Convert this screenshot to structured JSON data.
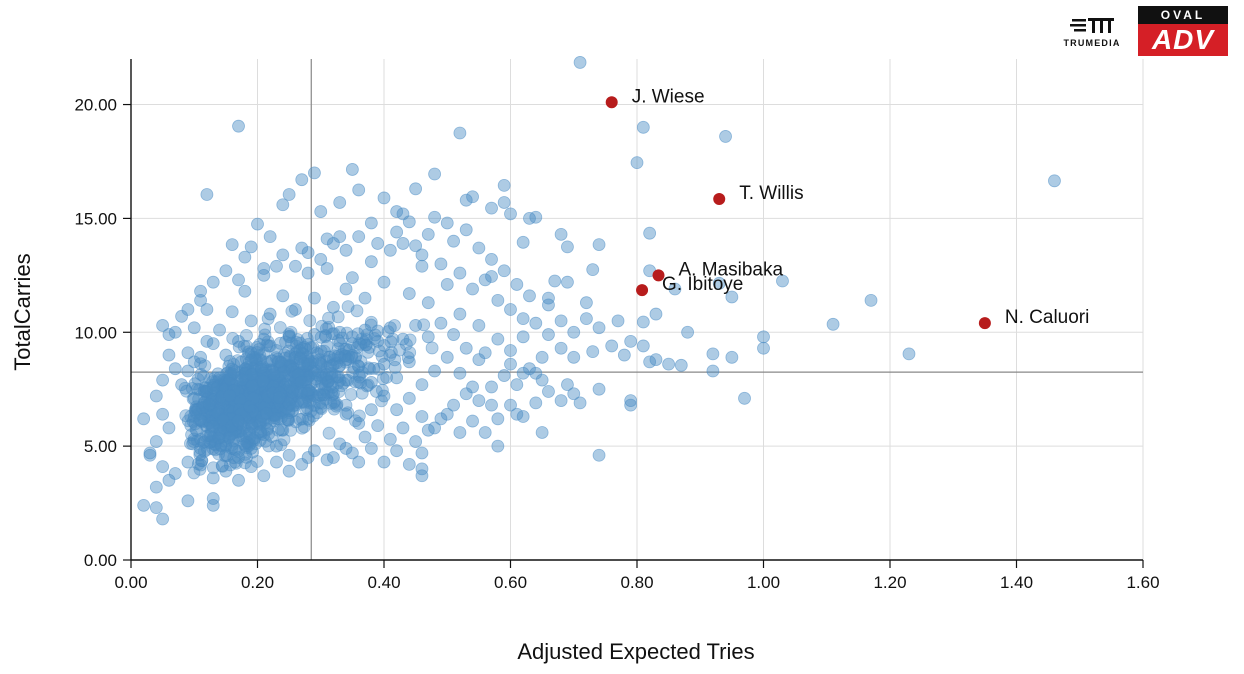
{
  "chart_data": {
    "type": "scatter",
    "title": "",
    "xlabel": "Adjusted Expected Tries",
    "ylabel": "TotalCarries",
    "xlim": [
      0,
      1.6
    ],
    "ylim": [
      0,
      22
    ],
    "grid": true,
    "xticks": [
      "0.00",
      "0.20",
      "0.40",
      "0.60",
      "0.80",
      "1.00",
      "1.20",
      "1.40",
      "1.60"
    ],
    "yticks": [
      "0.00",
      "5.00",
      "10.00",
      "15.00",
      "20.00"
    ],
    "xtick_values": [
      0,
      0.2,
      0.4,
      0.6,
      0.8,
      1.0,
      1.2,
      1.4,
      1.6
    ],
    "ytick_values": [
      0,
      5,
      10,
      15,
      20
    ],
    "reference_lines": {
      "x": 0.285,
      "y": 8.25
    },
    "colors": {
      "points": "#4a8cc4",
      "highlight": "#b71c1c",
      "grid": "#dddddd",
      "reference": "#888888"
    },
    "highlighted": [
      {
        "label": "J. Wiese",
        "x": 0.76,
        "y": 20.1
      },
      {
        "label": "T. Willis",
        "x": 0.93,
        "y": 15.85
      },
      {
        "label": "A. Masibaka",
        "x": 0.834,
        "y": 12.5
      },
      {
        "label": "G. Ibitoye",
        "x": 0.808,
        "y": 11.85
      },
      {
        "label": "N. Caluori",
        "x": 1.35,
        "y": 10.4
      }
    ],
    "points": [
      [
        0.71,
        21.85
      ],
      [
        0.17,
        19.05
      ],
      [
        0.81,
        19.0
      ],
      [
        0.94,
        18.6
      ],
      [
        0.52,
        18.75
      ],
      [
        0.8,
        17.45
      ],
      [
        1.46,
        16.65
      ],
      [
        0.48,
        16.95
      ],
      [
        0.27,
        16.7
      ],
      [
        0.29,
        17.0
      ],
      [
        0.35,
        17.15
      ],
      [
        0.36,
        16.25
      ],
      [
        0.12,
        16.05
      ],
      [
        0.25,
        16.05
      ],
      [
        0.53,
        15.8
      ],
      [
        0.54,
        15.95
      ],
      [
        0.59,
        16.45
      ],
      [
        0.59,
        15.7
      ],
      [
        0.6,
        15.2
      ],
      [
        0.63,
        15.0
      ],
      [
        0.64,
        15.05
      ],
      [
        0.57,
        15.45
      ],
      [
        0.42,
        15.3
      ],
      [
        0.44,
        14.85
      ],
      [
        0.48,
        15.05
      ],
      [
        0.38,
        14.8
      ],
      [
        0.33,
        14.2
      ],
      [
        0.2,
        14.75
      ],
      [
        0.16,
        13.85
      ],
      [
        0.19,
        13.75
      ],
      [
        0.27,
        13.7
      ],
      [
        0.62,
        13.95
      ],
      [
        0.68,
        14.3
      ],
      [
        0.74,
        13.85
      ],
      [
        0.82,
        14.35
      ],
      [
        0.69,
        13.75
      ],
      [
        0.73,
        12.75
      ],
      [
        0.67,
        12.25
      ],
      [
        0.69,
        12.2
      ],
      [
        0.82,
        12.7
      ],
      [
        0.86,
        11.9
      ],
      [
        0.93,
        12.15
      ],
      [
        0.95,
        11.55
      ],
      [
        1.03,
        12.25
      ],
      [
        1.17,
        11.4
      ],
      [
        0.57,
        12.45
      ],
      [
        0.66,
        11.5
      ],
      [
        0.72,
        11.3
      ],
      [
        0.77,
        10.5
      ],
      [
        0.81,
        10.45
      ],
      [
        0.83,
        10.8
      ],
      [
        0.88,
        10.0
      ],
      [
        1.0,
        9.8
      ],
      [
        1.11,
        10.35
      ],
      [
        1.23,
        9.05
      ],
      [
        0.92,
        9.05
      ],
      [
        0.95,
        8.9
      ],
      [
        1.0,
        9.3
      ],
      [
        0.82,
        8.7
      ],
      [
        0.83,
        8.8
      ],
      [
        0.85,
        8.6
      ],
      [
        0.87,
        8.55
      ],
      [
        0.92,
        8.3
      ],
      [
        0.79,
        9.6
      ],
      [
        0.81,
        9.4
      ],
      [
        0.73,
        9.15
      ],
      [
        0.7,
        8.9
      ],
      [
        0.68,
        9.3
      ],
      [
        0.65,
        8.9
      ],
      [
        0.64,
        8.2
      ],
      [
        0.62,
        8.2
      ],
      [
        0.6,
        8.6
      ],
      [
        0.69,
        7.7
      ],
      [
        0.7,
        7.3
      ],
      [
        0.71,
        6.9
      ],
      [
        0.74,
        7.5
      ],
      [
        0.79,
        7.0
      ],
      [
        0.79,
        6.8
      ],
      [
        0.97,
        7.1
      ],
      [
        0.74,
        4.6
      ],
      [
        0.65,
        5.6
      ],
      [
        0.58,
        5.0
      ],
      [
        0.61,
        6.4
      ],
      [
        0.57,
        6.8
      ],
      [
        0.46,
        4.0
      ],
      [
        0.46,
        3.7
      ],
      [
        0.02,
        2.4
      ],
      [
        0.04,
        2.3
      ],
      [
        0.05,
        1.8
      ],
      [
        0.13,
        2.7
      ],
      [
        0.13,
        2.4
      ],
      [
        0.09,
        2.6
      ],
      [
        0.04,
        3.2
      ],
      [
        0.06,
        3.5
      ],
      [
        0.03,
        4.6
      ],
      [
        0.02,
        6.2
      ],
      [
        0.05,
        10.3
      ],
      [
        0.06,
        9.9
      ],
      [
        0.1,
        10.2
      ],
      [
        0.06,
        9.0
      ],
      [
        0.1,
        8.7
      ],
      [
        0.11,
        11.4
      ],
      [
        0.12,
        11.0
      ],
      [
        0.17,
        12.3
      ],
      [
        0.18,
        11.8
      ],
      [
        0.21,
        12.5
      ],
      [
        0.23,
        12.9
      ],
      [
        0.28,
        12.6
      ],
      [
        0.3,
        13.2
      ],
      [
        0.31,
        12.8
      ],
      [
        0.32,
        13.9
      ],
      [
        0.35,
        12.4
      ],
      [
        0.38,
        13.1
      ],
      [
        0.41,
        13.6
      ],
      [
        0.43,
        13.9
      ],
      [
        0.46,
        13.4
      ],
      [
        0.49,
        13.0
      ],
      [
        0.51,
        14.0
      ],
      [
        0.53,
        14.5
      ],
      [
        0.46,
        12.9
      ],
      [
        0.5,
        12.1
      ],
      [
        0.52,
        12.6
      ],
      [
        0.54,
        11.9
      ],
      [
        0.56,
        12.3
      ],
      [
        0.58,
        11.4
      ],
      [
        0.6,
        11.0
      ],
      [
        0.62,
        10.6
      ],
      [
        0.55,
        10.3
      ],
      [
        0.52,
        10.8
      ],
      [
        0.47,
        11.3
      ],
      [
        0.44,
        11.7
      ],
      [
        0.4,
        12.2
      ],
      [
        0.37,
        11.5
      ],
      [
        0.34,
        11.9
      ],
      [
        0.32,
        11.1
      ],
      [
        0.29,
        11.5
      ],
      [
        0.26,
        11.0
      ],
      [
        0.24,
        11.6
      ],
      [
        0.22,
        10.8
      ],
      [
        0.19,
        10.5
      ],
      [
        0.16,
        10.9
      ],
      [
        0.14,
        10.1
      ],
      [
        0.12,
        9.6
      ],
      [
        0.09,
        9.1
      ],
      [
        0.07,
        8.4
      ],
      [
        0.05,
        7.9
      ],
      [
        0.04,
        7.2
      ],
      [
        0.05,
        6.4
      ],
      [
        0.06,
        5.8
      ],
      [
        0.04,
        5.2
      ],
      [
        0.03,
        4.7
      ],
      [
        0.05,
        4.1
      ],
      [
        0.07,
        3.8
      ],
      [
        0.09,
        4.3
      ],
      [
        0.11,
        4.9
      ],
      [
        0.13,
        5.4
      ],
      [
        0.15,
        5.0
      ],
      [
        0.17,
        4.5
      ],
      [
        0.19,
        4.9
      ],
      [
        0.21,
        5.5
      ],
      [
        0.23,
        5.0
      ],
      [
        0.25,
        4.6
      ],
      [
        0.27,
        4.2
      ],
      [
        0.29,
        4.8
      ],
      [
        0.31,
        4.4
      ],
      [
        0.33,
        5.1
      ],
      [
        0.35,
        4.7
      ],
      [
        0.37,
        5.4
      ],
      [
        0.39,
        5.9
      ],
      [
        0.41,
        5.3
      ],
      [
        0.43,
        5.8
      ],
      [
        0.45,
        5.2
      ],
      [
        0.47,
        5.7
      ],
      [
        0.49,
        6.2
      ],
      [
        0.51,
        6.8
      ],
      [
        0.53,
        7.3
      ],
      [
        0.55,
        7.0
      ],
      [
        0.57,
        7.6
      ],
      [
        0.59,
        8.1
      ],
      [
        0.61,
        7.7
      ],
      [
        0.63,
        8.4
      ],
      [
        0.65,
        7.9
      ],
      [
        0.55,
        8.8
      ],
      [
        0.53,
        9.3
      ],
      [
        0.51,
        9.9
      ],
      [
        0.49,
        10.4
      ],
      [
        0.47,
        9.8
      ],
      [
        0.45,
        10.3
      ],
      [
        0.43,
        9.7
      ],
      [
        0.41,
        10.2
      ],
      [
        0.39,
        9.6
      ],
      [
        0.37,
        10.1
      ],
      [
        0.35,
        9.5
      ],
      [
        0.33,
        10.0
      ],
      [
        0.31,
        9.4
      ],
      [
        0.29,
        9.9
      ],
      [
        0.27,
        9.3
      ],
      [
        0.25,
        9.8
      ],
      [
        0.23,
        9.2
      ],
      [
        0.21,
        9.7
      ],
      [
        0.19,
        9.1
      ],
      [
        0.17,
        9.6
      ],
      [
        0.15,
        9.0
      ],
      [
        0.13,
        9.5
      ],
      [
        0.11,
        8.9
      ],
      [
        0.09,
        8.3
      ],
      [
        0.08,
        7.7
      ],
      [
        0.1,
        7.1
      ],
      [
        0.12,
        6.5
      ],
      [
        0.14,
        5.9
      ],
      [
        0.16,
        6.3
      ],
      [
        0.18,
        6.9
      ],
      [
        0.2,
        7.5
      ],
      [
        0.22,
        8.1
      ],
      [
        0.24,
        7.4
      ],
      [
        0.26,
        6.8
      ],
      [
        0.28,
        6.2
      ],
      [
        0.3,
        6.7
      ],
      [
        0.32,
        7.3
      ],
      [
        0.34,
        7.9
      ],
      [
        0.36,
        8.5
      ],
      [
        0.38,
        7.8
      ],
      [
        0.4,
        7.2
      ],
      [
        0.42,
        6.6
      ],
      [
        0.44,
        7.1
      ],
      [
        0.46,
        7.7
      ],
      [
        0.48,
        8.3
      ],
      [
        0.5,
        8.9
      ],
      [
        0.52,
        8.2
      ],
      [
        0.54,
        7.6
      ],
      [
        0.56,
        9.1
      ],
      [
        0.58,
        9.7
      ],
      [
        0.6,
        9.2
      ],
      [
        0.62,
        9.8
      ],
      [
        0.64,
        10.4
      ],
      [
        0.66,
        9.9
      ],
      [
        0.68,
        10.5
      ],
      [
        0.7,
        10.0
      ],
      [
        0.72,
        10.6
      ],
      [
        0.74,
        10.2
      ],
      [
        0.76,
        9.4
      ],
      [
        0.78,
        9.0
      ],
      [
        0.66,
        11.2
      ],
      [
        0.63,
        11.6
      ],
      [
        0.61,
        12.1
      ],
      [
        0.59,
        12.7
      ],
      [
        0.57,
        13.2
      ],
      [
        0.55,
        13.7
      ],
      [
        0.5,
        14.8
      ],
      [
        0.47,
        14.3
      ],
      [
        0.45,
        13.8
      ],
      [
        0.42,
        14.4
      ],
      [
        0.39,
        13.9
      ],
      [
        0.36,
        14.2
      ],
      [
        0.34,
        13.6
      ],
      [
        0.31,
        14.1
      ],
      [
        0.28,
        13.5
      ],
      [
        0.26,
        12.9
      ],
      [
        0.24,
        13.4
      ],
      [
        0.21,
        12.8
      ],
      [
        0.18,
        13.3
      ],
      [
        0.15,
        12.7
      ],
      [
        0.13,
        12.2
      ],
      [
        0.11,
        11.8
      ],
      [
        0.08,
        10.7
      ],
      [
        0.07,
        10.0
      ],
      [
        0.09,
        11.0
      ],
      [
        0.22,
        14.2
      ],
      [
        0.24,
        15.6
      ],
      [
        0.3,
        15.3
      ],
      [
        0.33,
        15.7
      ],
      [
        0.4,
        15.9
      ],
      [
        0.43,
        15.2
      ],
      [
        0.45,
        16.3
      ],
      [
        0.1,
        6.3
      ],
      [
        0.12,
        7.4
      ],
      [
        0.14,
        8.0
      ],
      [
        0.16,
        7.1
      ],
      [
        0.18,
        8.3
      ],
      [
        0.2,
        6.1
      ],
      [
        0.22,
        6.6
      ],
      [
        0.24,
        5.7
      ],
      [
        0.26,
        7.9
      ],
      [
        0.28,
        8.6
      ],
      [
        0.3,
        8.0
      ],
      [
        0.32,
        8.8
      ],
      [
        0.34,
        6.4
      ],
      [
        0.36,
        6.0
      ],
      [
        0.38,
        6.6
      ],
      [
        0.4,
        8.6
      ],
      [
        0.42,
        8.0
      ],
      [
        0.44,
        8.7
      ],
      [
        0.46,
        6.3
      ],
      [
        0.48,
        5.8
      ],
      [
        0.5,
        6.4
      ],
      [
        0.52,
        5.6
      ],
      [
        0.54,
        6.1
      ],
      [
        0.56,
        5.6
      ],
      [
        0.58,
        6.2
      ],
      [
        0.6,
        6.8
      ],
      [
        0.62,
        6.3
      ],
      [
        0.64,
        6.9
      ],
      [
        0.66,
        7.4
      ],
      [
        0.68,
        7.0
      ],
      [
        0.13,
        3.6
      ],
      [
        0.15,
        3.9
      ],
      [
        0.17,
        3.5
      ],
      [
        0.19,
        4.1
      ],
      [
        0.21,
        3.7
      ],
      [
        0.23,
        4.3
      ],
      [
        0.25,
        3.9
      ],
      [
        0.28,
        4.5
      ],
      [
        0.32,
        4.5
      ],
      [
        0.34,
        4.9
      ],
      [
        0.36,
        4.3
      ],
      [
        0.38,
        4.9
      ],
      [
        0.4,
        4.3
      ],
      [
        0.42,
        4.8
      ],
      [
        0.44,
        4.2
      ],
      [
        0.46,
        4.7
      ]
    ]
  },
  "logos": {
    "trumedia_text": "TRUMEDIA",
    "oval_top": "OVAL",
    "oval_bottom": "ADV"
  }
}
